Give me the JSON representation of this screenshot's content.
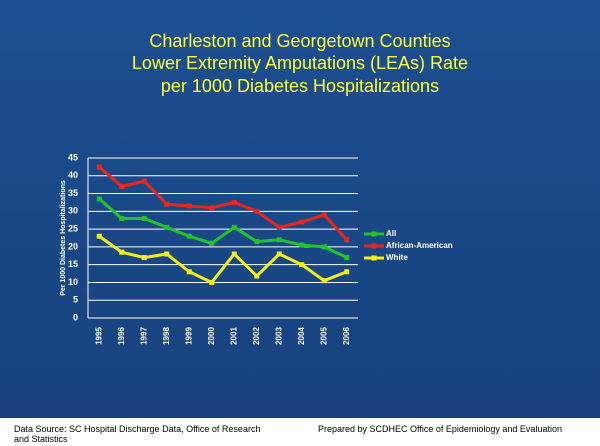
{
  "chart_data": {
    "type": "line",
    "title": [
      "Charleston and Georgetown Counties",
      "Lower Extremity Amputations (LEAs) Rate",
      "per 1000 Diabetes Hospitalizations"
    ],
    "y_label": "Per 1000 Diabetes Hospitalizations",
    "categories": [
      "1995",
      "1996",
      "1997",
      "1998",
      "1999",
      "2000",
      "2001",
      "2002",
      "2003",
      "2004",
      "2005",
      "2006"
    ],
    "series": [
      {
        "name": "All",
        "color": "#22c22a",
        "values": [
          33.5,
          28,
          28,
          25.5,
          23,
          21,
          25.5,
          21.5,
          22,
          20.5,
          20,
          17
        ]
      },
      {
        "name": "African-American",
        "color": "#e8261e",
        "values": [
          42.5,
          37,
          38.5,
          32,
          31.5,
          31,
          32.5,
          30,
          25.5,
          27,
          29,
          22
        ]
      },
      {
        "name": "White",
        "color": "#f2ef1c",
        "values": [
          23,
          18.5,
          17,
          18,
          13,
          10,
          18,
          11.8,
          18,
          15,
          10.5,
          13
        ]
      }
    ],
    "ylim": [
      0,
      45
    ],
    "yticks": [
      0,
      5,
      10,
      15,
      20,
      25,
      30,
      35,
      40,
      45
    ],
    "grid": true,
    "legend": "right"
  },
  "footer": {
    "left": "Data Source:  SC Hospital Discharge Data,  Office of Research and Statistics",
    "right": "Prepared by SCDHEC Office of Epidemiology and Evaluation"
  }
}
